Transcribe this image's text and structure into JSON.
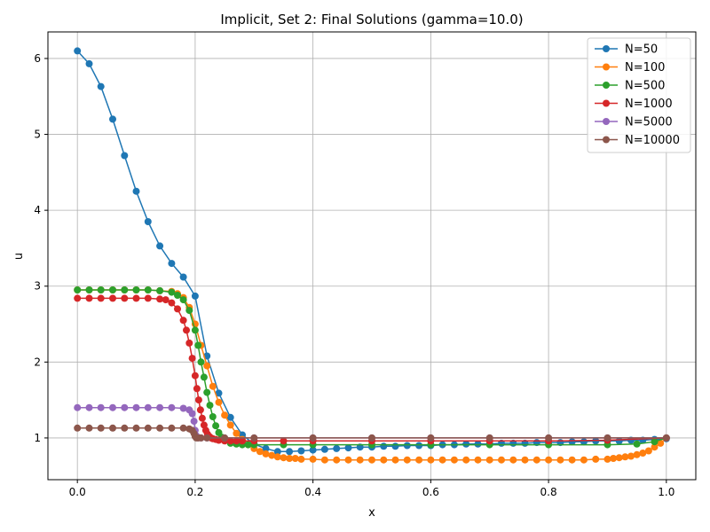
{
  "chart_data": {
    "type": "line",
    "title": "Implicit, Set 2: Final Solutions (gamma=10.0)",
    "xlabel": "x",
    "ylabel": "u",
    "xlim": [
      -0.05,
      1.05
    ],
    "ylim": [
      0.45,
      6.35
    ],
    "xticks": [
      0.0,
      0.2,
      0.4,
      0.6,
      0.8,
      1.0
    ],
    "xtick_labels": [
      "0.0",
      "0.2",
      "0.4",
      "0.6",
      "0.8",
      "1.0"
    ],
    "yticks": [
      1,
      2,
      3,
      4,
      5,
      6
    ],
    "ytick_labels": [
      "1",
      "2",
      "3",
      "4",
      "5",
      "6"
    ],
    "grid": true,
    "legend_position": "top-right",
    "series": [
      {
        "name": "N=50",
        "color": "#1f77b4",
        "x": [
          0.0,
          0.02,
          0.04,
          0.06,
          0.08,
          0.1,
          0.12,
          0.14,
          0.16,
          0.18,
          0.2,
          0.22,
          0.24,
          0.26,
          0.28,
          0.3,
          0.32,
          0.34,
          0.36,
          0.38,
          0.4,
          0.42,
          0.44,
          0.46,
          0.48,
          0.5,
          0.52,
          0.54,
          0.56,
          0.58,
          0.6,
          0.62,
          0.64,
          0.66,
          0.68,
          0.7,
          0.72,
          0.74,
          0.76,
          0.78,
          0.8,
          0.82,
          0.84,
          0.86,
          0.88,
          0.9,
          0.92,
          0.94,
          0.96,
          0.98,
          1.0
        ],
        "y": [
          6.1,
          5.93,
          5.63,
          5.2,
          4.72,
          4.25,
          3.85,
          3.53,
          3.3,
          3.12,
          2.87,
          2.08,
          1.59,
          1.27,
          1.04,
          0.92,
          0.86,
          0.82,
          0.82,
          0.83,
          0.84,
          0.85,
          0.86,
          0.87,
          0.88,
          0.88,
          0.89,
          0.89,
          0.9,
          0.9,
          0.9,
          0.91,
          0.91,
          0.92,
          0.92,
          0.92,
          0.93,
          0.93,
          0.93,
          0.94,
          0.94,
          0.94,
          0.95,
          0.95,
          0.96,
          0.96,
          0.96,
          0.97,
          0.97,
          0.98,
          0.99
        ]
      },
      {
        "name": "N=100",
        "color": "#ff7f0e",
        "x": [
          0.0,
          0.02,
          0.04,
          0.06,
          0.08,
          0.1,
          0.12,
          0.14,
          0.16,
          0.17,
          0.18,
          0.19,
          0.2,
          0.21,
          0.22,
          0.23,
          0.24,
          0.25,
          0.26,
          0.27,
          0.28,
          0.29,
          0.3,
          0.31,
          0.32,
          0.33,
          0.34,
          0.35,
          0.36,
          0.37,
          0.38,
          0.4,
          0.42,
          0.44,
          0.46,
          0.48,
          0.5,
          0.52,
          0.54,
          0.56,
          0.58,
          0.6,
          0.62,
          0.64,
          0.66,
          0.68,
          0.7,
          0.72,
          0.74,
          0.76,
          0.78,
          0.8,
          0.82,
          0.84,
          0.86,
          0.88,
          0.9,
          0.91,
          0.92,
          0.93,
          0.94,
          0.95,
          0.96,
          0.97,
          0.98,
          0.99,
          1.0
        ],
        "y": [
          2.95,
          2.95,
          2.95,
          2.95,
          2.95,
          2.95,
          2.95,
          2.94,
          2.93,
          2.9,
          2.85,
          2.72,
          2.5,
          2.22,
          1.95,
          1.68,
          1.47,
          1.3,
          1.17,
          1.06,
          0.98,
          0.91,
          0.86,
          0.82,
          0.79,
          0.77,
          0.75,
          0.74,
          0.73,
          0.73,
          0.72,
          0.72,
          0.71,
          0.71,
          0.71,
          0.71,
          0.71,
          0.71,
          0.71,
          0.71,
          0.71,
          0.71,
          0.71,
          0.71,
          0.71,
          0.71,
          0.71,
          0.71,
          0.71,
          0.71,
          0.71,
          0.71,
          0.71,
          0.71,
          0.71,
          0.72,
          0.72,
          0.73,
          0.74,
          0.75,
          0.76,
          0.78,
          0.8,
          0.83,
          0.88,
          0.93,
          1.0
        ]
      },
      {
        "name": "N=500",
        "color": "#2ca02c",
        "x": [
          0.0,
          0.02,
          0.04,
          0.06,
          0.08,
          0.1,
          0.12,
          0.14,
          0.16,
          0.17,
          0.18,
          0.19,
          0.2,
          0.205,
          0.21,
          0.215,
          0.22,
          0.225,
          0.23,
          0.235,
          0.24,
          0.245,
          0.25,
          0.26,
          0.27,
          0.28,
          0.29,
          0.3,
          0.35,
          0.4,
          0.5,
          0.6,
          0.7,
          0.8,
          0.9,
          0.95,
          0.98,
          1.0
        ],
        "y": [
          2.95,
          2.95,
          2.95,
          2.95,
          2.95,
          2.95,
          2.95,
          2.94,
          2.92,
          2.88,
          2.82,
          2.68,
          2.42,
          2.22,
          2.0,
          1.8,
          1.6,
          1.43,
          1.28,
          1.16,
          1.07,
          1.01,
          0.97,
          0.93,
          0.92,
          0.91,
          0.91,
          0.91,
          0.91,
          0.91,
          0.91,
          0.91,
          0.91,
          0.91,
          0.91,
          0.92,
          0.95,
          1.0
        ]
      },
      {
        "name": "N=1000",
        "color": "#d62728",
        "x": [
          0.0,
          0.02,
          0.04,
          0.06,
          0.08,
          0.1,
          0.12,
          0.14,
          0.15,
          0.16,
          0.17,
          0.18,
          0.185,
          0.19,
          0.195,
          0.2,
          0.203,
          0.206,
          0.209,
          0.212,
          0.215,
          0.218,
          0.221,
          0.224,
          0.227,
          0.23,
          0.235,
          0.24,
          0.25,
          0.26,
          0.27,
          0.28,
          0.3,
          0.35,
          0.4,
          0.5,
          0.6,
          0.7,
          0.8,
          0.9,
          1.0
        ],
        "y": [
          2.84,
          2.84,
          2.84,
          2.84,
          2.84,
          2.84,
          2.84,
          2.83,
          2.82,
          2.78,
          2.7,
          2.55,
          2.42,
          2.25,
          2.05,
          1.82,
          1.65,
          1.5,
          1.37,
          1.26,
          1.17,
          1.1,
          1.05,
          1.02,
          1.0,
          0.99,
          0.98,
          0.97,
          0.96,
          0.96,
          0.96,
          0.96,
          0.96,
          0.96,
          0.96,
          0.96,
          0.96,
          0.96,
          0.96,
          0.97,
          1.0
        ]
      },
      {
        "name": "N=5000",
        "color": "#9467bd",
        "x": [
          0.0,
          0.02,
          0.04,
          0.06,
          0.08,
          0.1,
          0.12,
          0.14,
          0.16,
          0.18,
          0.19,
          0.195,
          0.198,
          0.2,
          0.202,
          0.205,
          0.21,
          0.22,
          0.25,
          0.3,
          0.4,
          0.5,
          0.6,
          0.7,
          0.8,
          0.9,
          1.0
        ],
        "y": [
          1.4,
          1.4,
          1.4,
          1.4,
          1.4,
          1.4,
          1.4,
          1.4,
          1.4,
          1.39,
          1.37,
          1.32,
          1.22,
          1.1,
          1.03,
          1.0,
          1.0,
          1.0,
          1.0,
          1.0,
          1.0,
          1.0,
          1.0,
          1.0,
          1.0,
          1.0,
          1.0
        ]
      },
      {
        "name": "N=10000",
        "color": "#8c564b",
        "x": [
          0.0,
          0.02,
          0.04,
          0.06,
          0.08,
          0.1,
          0.12,
          0.14,
          0.16,
          0.18,
          0.19,
          0.195,
          0.198,
          0.2,
          0.202,
          0.205,
          0.21,
          0.22,
          0.25,
          0.3,
          0.4,
          0.5,
          0.6,
          0.7,
          0.8,
          0.9,
          1.0
        ],
        "y": [
          1.13,
          1.13,
          1.13,
          1.13,
          1.13,
          1.13,
          1.13,
          1.13,
          1.13,
          1.13,
          1.12,
          1.1,
          1.06,
          1.02,
          1.0,
          1.0,
          1.0,
          1.0,
          1.0,
          1.0,
          1.0,
          1.0,
          1.0,
          1.0,
          1.0,
          1.0,
          1.0
        ]
      }
    ]
  }
}
